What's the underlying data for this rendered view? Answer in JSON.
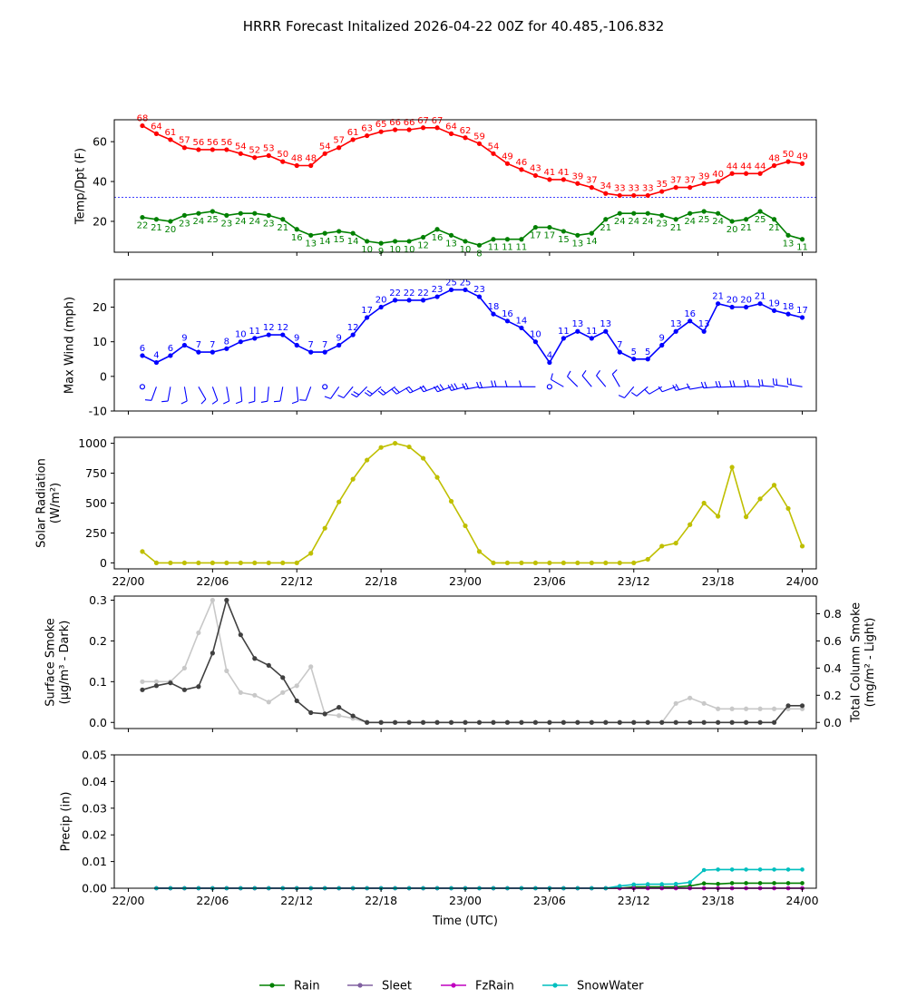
{
  "chart_data": [
    {
      "panel": "temp_dewpoint",
      "type": "line",
      "title": "HRRR Forecast Initalized 2026-04-22 00Z for 40.485,-106.832",
      "ylabel": "Temp/Dpt (F)",
      "ylim": [
        4.5,
        71
      ],
      "yticks": [
        20,
        40,
        60
      ],
      "reference_line": 32,
      "series": [
        {
          "name": "Temperature",
          "color": "#ff0000",
          "values": [
            68,
            64,
            61,
            57,
            56,
            56,
            56,
            54,
            52,
            53,
            50,
            48,
            48,
            54,
            57,
            61,
            63,
            65,
            66,
            66,
            67,
            67,
            64,
            62,
            59,
            54,
            49,
            46,
            43,
            41,
            41,
            39,
            37,
            34,
            33,
            33,
            33,
            35,
            37,
            37,
            39,
            40,
            44,
            44,
            44,
            48,
            50,
            49
          ]
        },
        {
          "name": "Dewpoint",
          "color": "#008000",
          "values": [
            22,
            21,
            20,
            23,
            24,
            25,
            23,
            24,
            24,
            23,
            21,
            16,
            13,
            14,
            15,
            14,
            10,
            9,
            10,
            10,
            12,
            16,
            13,
            10,
            8,
            11,
            11,
            11,
            17,
            17,
            15,
            13,
            14,
            21,
            24,
            24,
            24,
            23,
            21,
            24,
            25,
            24,
            20,
            21,
            25,
            21,
            13,
            11
          ]
        }
      ]
    },
    {
      "panel": "max_wind",
      "type": "line",
      "ylabel": "Max Wind (mph)",
      "ylim": [
        -10,
        28
      ],
      "yticks": [
        -10,
        0,
        10,
        20
      ],
      "series": [
        {
          "name": "Max Wind",
          "color": "#0000ff",
          "values": [
            6,
            4,
            6,
            9,
            7,
            7,
            8,
            10,
            11,
            12,
            12,
            9,
            7,
            7,
            9,
            12,
            17,
            20,
            22,
            22,
            22,
            23,
            25,
            25,
            23,
            18,
            16,
            14,
            10,
            4,
            11,
            13,
            11,
            13,
            7,
            5,
            5,
            9,
            13,
            16,
            13,
            21,
            20,
            20,
            21,
            19,
            18,
            17
          ]
        }
      ],
      "wind_barbs": "row of wind barbs along y = -3"
    },
    {
      "panel": "solar_radiation",
      "type": "line",
      "ylabel": "Solar Radiation",
      "ylabel_units": "(W/m²)",
      "ylim": [
        -50,
        1050
      ],
      "yticks": [
        0,
        250,
        500,
        750,
        1000
      ],
      "series": [
        {
          "name": "Solar Radiation",
          "color": "#bfbf00",
          "values": [
            95,
            0,
            0,
            0,
            0,
            0,
            0,
            0,
            0,
            0,
            0,
            0,
            80,
            290,
            510,
            700,
            860,
            965,
            1000,
            970,
            875,
            715,
            515,
            310,
            95,
            0,
            0,
            0,
            0,
            0,
            0,
            0,
            0,
            0,
            0,
            0,
            30,
            140,
            165,
            320,
            500,
            390,
            800,
            385,
            535,
            650,
            455,
            140
          ]
        }
      ]
    },
    {
      "panel": "smoke",
      "type": "line",
      "ylabel": "Surface Smoke",
      "ylabel_units": "(μg/m³ - Dark)",
      "ylabel_right": "Total Column Smoke",
      "ylabel_right_units": "(mg/m² - Light)",
      "ylim": [
        -0.015,
        0.31
      ],
      "ylim_right": [
        -0.045,
        0.93
      ],
      "yticks": [
        0.0,
        0.1,
        0.2,
        0.3
      ],
      "yticks_right": [
        0.0,
        0.2,
        0.4,
        0.6,
        0.8
      ],
      "series": [
        {
          "name": "Surface Smoke",
          "color": "#404040",
          "axis": "left",
          "values": [
            0.08,
            0.09,
            0.097,
            0.08,
            0.088,
            0.17,
            0.3,
            0.215,
            0.157,
            0.14,
            0.11,
            0.053,
            0.024,
            0.021,
            0.037,
            0.016,
            0,
            0,
            0,
            0,
            0,
            0,
            0,
            0,
            0,
            0,
            0,
            0,
            0,
            0,
            0,
            0,
            0,
            0,
            0,
            0,
            0,
            0,
            0,
            0,
            0,
            0,
            0,
            0,
            0,
            0,
            0.041,
            0.041
          ]
        },
        {
          "name": "Total Column Smoke",
          "color": "#c8c8c8",
          "axis": "right",
          "values": [
            0.3,
            0.3,
            0.3,
            0.4,
            0.66,
            0.9,
            0.38,
            0.22,
            0.2,
            0.15,
            0.22,
            0.27,
            0.41,
            0.06,
            0.05,
            0.03,
            0,
            0,
            0,
            0,
            0,
            0,
            0,
            0,
            0,
            0,
            0,
            0,
            0,
            0,
            0,
            0,
            0,
            0,
            0,
            0,
            0,
            0,
            0.14,
            0.18,
            0.14,
            0.1,
            0.1,
            0.1,
            0.1,
            0.1,
            0.1,
            0.1
          ]
        }
      ]
    },
    {
      "panel": "precip",
      "type": "line",
      "ylabel": "Precip (in)",
      "xlabel": "Time (UTC)",
      "ylim": [
        0,
        0.05
      ],
      "yticks": [
        "0.00",
        "0.01",
        "0.02",
        "0.03",
        "0.04",
        "0.05"
      ],
      "series": [
        {
          "name": "Rain",
          "color": "#008000",
          "values": [
            0,
            0,
            0,
            0,
            0,
            0,
            0,
            0,
            0,
            0,
            0,
            0,
            0,
            0,
            0,
            0,
            0,
            0,
            0,
            0,
            0,
            0,
            0,
            0,
            0,
            0,
            0,
            0,
            0,
            0,
            0,
            0,
            0,
            0,
            0,
            0.0005,
            0.0005,
            0.0005,
            0.0005,
            0.0008,
            0.0018,
            0.0016,
            0.0019,
            0.0019,
            0.0019,
            0.0019,
            0.0019,
            0.0019
          ]
        },
        {
          "name": "Sleet",
          "color": "#8060a0",
          "values": [
            0,
            0,
            0,
            0,
            0,
            0,
            0,
            0,
            0,
            0,
            0,
            0,
            0,
            0,
            0,
            0,
            0,
            0,
            0,
            0,
            0,
            0,
            0,
            0,
            0,
            0,
            0,
            0,
            0,
            0,
            0,
            0,
            0,
            0,
            0,
            0,
            0,
            0,
            0,
            0,
            0,
            0,
            0,
            0,
            0,
            0,
            0,
            0
          ]
        },
        {
          "name": "FzRain",
          "color": "#c000c0",
          "values": [
            0,
            0,
            0,
            0,
            0,
            0,
            0,
            0,
            0,
            0,
            0,
            0,
            0,
            0,
            0,
            0,
            0,
            0,
            0,
            0,
            0,
            0,
            0,
            0,
            0,
            0,
            0,
            0,
            0,
            0,
            0,
            0,
            0,
            0,
            0,
            0,
            0,
            0,
            0,
            0,
            0,
            0,
            0,
            0,
            0,
            0,
            0,
            0
          ]
        },
        {
          "name": "SnowWater",
          "color": "#00bfbf",
          "values": [
            0,
            0,
            0,
            0,
            0,
            0,
            0,
            0,
            0,
            0,
            0,
            0,
            0,
            0,
            0,
            0,
            0,
            0,
            0,
            0,
            0,
            0,
            0,
            0,
            0,
            0,
            0,
            0,
            0,
            0,
            0,
            0,
            0,
            0,
            0.0008,
            0.0014,
            0.0015,
            0.0015,
            0.0016,
            0.0022,
            0.0068,
            0.007,
            0.007,
            0.007,
            0.007,
            0.007,
            0.007,
            0.007
          ]
        }
      ]
    }
  ],
  "x_axis": {
    "start_hour": 1,
    "end_hour": 48,
    "tick_labels": [
      "22/00",
      "22/06",
      "22/12",
      "22/18",
      "23/00",
      "23/06",
      "23/12",
      "23/18",
      "24/00"
    ],
    "label": "Time (UTC)"
  },
  "legend": {
    "placement": "bottom-center",
    "items": [
      {
        "label": "Rain",
        "color": "#008000"
      },
      {
        "label": "Sleet",
        "color": "#8060a0"
      },
      {
        "label": "FzRain",
        "color": "#c000c0"
      },
      {
        "label": "SnowWater",
        "color": "#00bfbf"
      }
    ]
  }
}
